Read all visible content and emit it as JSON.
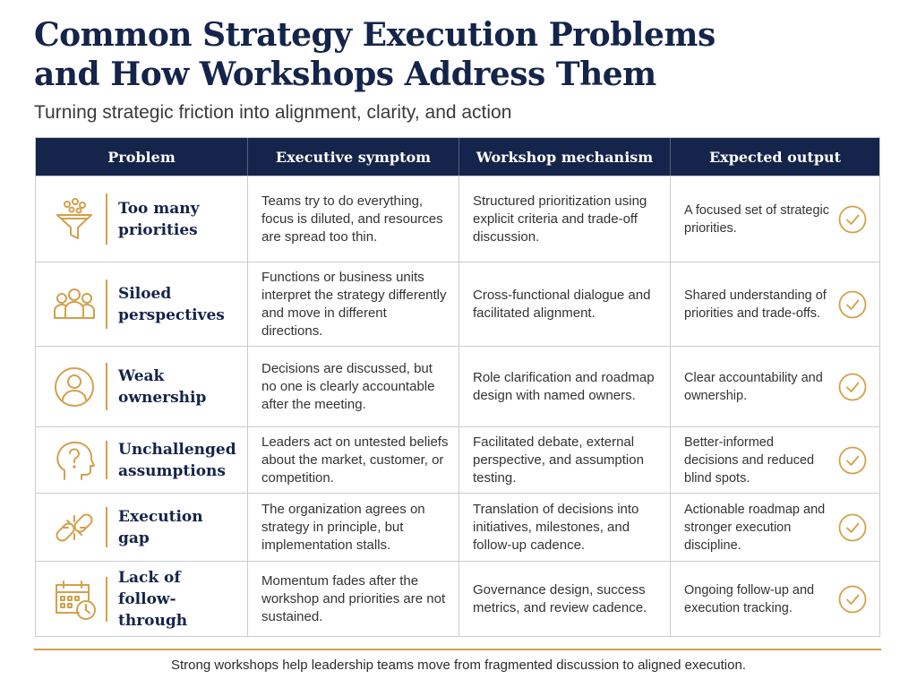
{
  "title_line1": "Common Strategy Execution Problems",
  "title_line2": "and How Workshops Address Them",
  "subtitle": "Turning strategic friction into alignment, clarity, and action",
  "columns": [
    "Problem",
    "Executive symptom",
    "Workshop mechanism",
    "Expected output"
  ],
  "accent_color": "#d4a04a",
  "header_color": "#14244a",
  "rows": [
    {
      "icon": "funnel-icon",
      "problem": [
        "Too many",
        "priorities"
      ],
      "symptom": "Teams try to do everything, focus is diluted, and resources are spread too thin.",
      "mechanism": "Structured prioritization using explicit criteria and trade-off discussion.",
      "output": "A focused set of strategic priorities."
    },
    {
      "icon": "people-group-icon",
      "problem": [
        "Siloed",
        "perspectives"
      ],
      "symptom": "Functions or business units interpret the strategy differently and move in different directions.",
      "mechanism": "Cross-functional dialogue and facilitated alignment.",
      "output": "Shared understanding of priorities and trade-offs."
    },
    {
      "icon": "person-icon",
      "problem": [
        "Weak",
        "ownership"
      ],
      "symptom": "Decisions are discussed, but no one is clearly accountable after the meeting.",
      "mechanism": "Role clarification and roadmap design with named owners.",
      "output": "Clear accountability and ownership."
    },
    {
      "icon": "head-question-icon",
      "problem": [
        "Unchallenged",
        "assumptions"
      ],
      "symptom": "Leaders act on untested beliefs about the market, customer, or competition.",
      "mechanism": "Facilitated debate, external perspective, and assumption testing.",
      "output": "Better-informed decisions and reduced blind spots."
    },
    {
      "icon": "broken-link-icon",
      "problem": [
        "Execution",
        "gap"
      ],
      "symptom": "The organization agrees on strategy in principle, but implementation stalls.",
      "mechanism": "Translation of decisions into initiatives, milestones, and follow-up cadence.",
      "output": "Actionable roadmap and stronger execution discipline."
    },
    {
      "icon": "calendar-clock-icon",
      "problem": [
        "Lack of",
        "follow-through"
      ],
      "symptom": "Momentum fades after the workshop and priorities are not sustained.",
      "mechanism": "Governance design, success metrics, and review cadence.",
      "output": "Ongoing follow-up and execution tracking."
    }
  ],
  "footer": "Strong workshops help leadership teams move from fragmented discussion to aligned execution."
}
